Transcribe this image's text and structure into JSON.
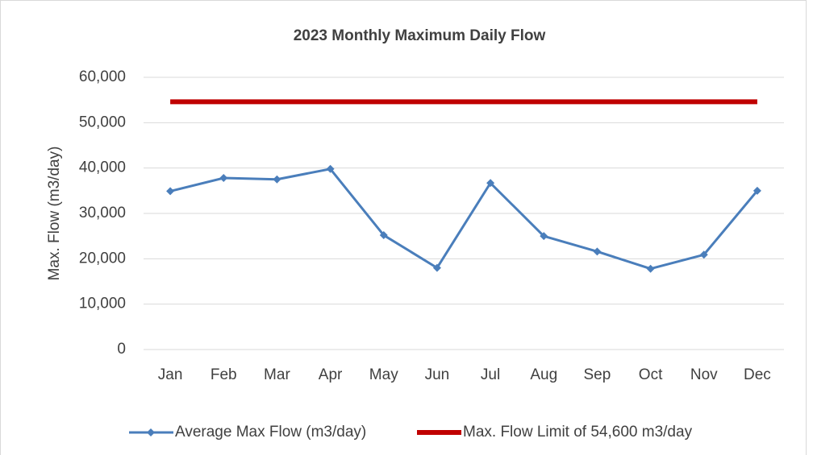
{
  "chart_data": {
    "type": "line",
    "title": "2023 Monthly Maximum Daily Flow",
    "y_label": "Max. Flow (m3/day)",
    "categories": [
      "Jan",
      "Feb",
      "Mar",
      "Apr",
      "May",
      "Jun",
      "Jul",
      "Aug",
      "Sep",
      "Oct",
      "Nov",
      "Dec"
    ],
    "series": [
      {
        "name": "Average Max Flow (m3/day)",
        "color": "#4a7ebb",
        "marker": "diamond",
        "values": [
          34900,
          37800,
          37500,
          39800,
          25200,
          18000,
          36700,
          25000,
          21600,
          17800,
          20900,
          35000
        ]
      },
      {
        "name": "Max. Flow Limit of 54,600 m3/day",
        "color": "#c00000",
        "values": [
          54600,
          54600,
          54600,
          54600,
          54600,
          54600,
          54600,
          54600,
          54600,
          54600,
          54600,
          54600
        ]
      }
    ],
    "ylim": [
      0,
      60000
    ],
    "yticks": [
      0,
      {
        "value": 10000,
        "label": "10,000"
      },
      {
        "value": 20000,
        "label": "20,000"
      },
      {
        "value": 30000,
        "label": "30,000"
      },
      {
        "value": 40000,
        "label": "40,000"
      },
      {
        "value": 50000,
        "label": "50,000"
      },
      {
        "value": 60000,
        "label": "60,000"
      }
    ],
    "grid": true,
    "legend": "bottom"
  }
}
